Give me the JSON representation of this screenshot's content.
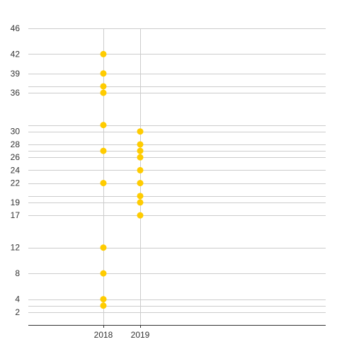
{
  "chart_data": {
    "type": "scatter",
    "title": "",
    "xlabel": "",
    "ylabel": "",
    "categories": [
      "2018",
      "2019"
    ],
    "series": [
      {
        "points": [
          {
            "x": "2018",
            "y": 42
          },
          {
            "x": "2018",
            "y": 39
          },
          {
            "x": "2018",
            "y": 37
          },
          {
            "x": "2018",
            "y": 36
          },
          {
            "x": "2018",
            "y": 31
          },
          {
            "x": "2018",
            "y": 27
          },
          {
            "x": "2018",
            "y": 22
          },
          {
            "x": "2018",
            "y": 12
          },
          {
            "x": "2018",
            "y": 8
          },
          {
            "x": "2018",
            "y": 4
          },
          {
            "x": "2018",
            "y": 3
          },
          {
            "x": "2019",
            "y": 30
          },
          {
            "x": "2019",
            "y": 28
          },
          {
            "x": "2019",
            "y": 27
          },
          {
            "x": "2019",
            "y": 26
          },
          {
            "x": "2019",
            "y": 24
          },
          {
            "x": "2019",
            "y": 22
          },
          {
            "x": "2019",
            "y": 20
          },
          {
            "x": "2019",
            "y": 19
          },
          {
            "x": "2019",
            "y": 17
          }
        ]
      }
    ],
    "y_tick_labels": [
      46,
      42,
      39,
      36,
      30,
      28,
      26,
      24,
      22,
      19,
      17,
      12,
      8,
      4,
      2
    ],
    "y_gridlines": [
      46,
      42,
      39,
      37,
      36,
      31,
      30,
      28,
      27,
      26,
      24,
      22,
      20,
      19,
      17,
      12,
      8,
      4,
      3,
      2
    ],
    "ylim": [
      0,
      46
    ],
    "grid": true,
    "legend": "none",
    "marker_color": "#FFCC00",
    "grid_color": "#CCCCCC",
    "axis_color": "#333333"
  }
}
